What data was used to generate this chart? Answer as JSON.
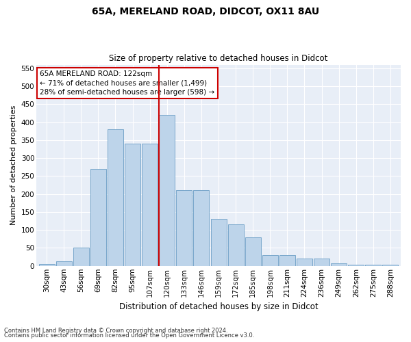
{
  "title1": "65A, MERELAND ROAD, DIDCOT, OX11 8AU",
  "title2": "Size of property relative to detached houses in Didcot",
  "xlabel": "Distribution of detached houses by size in Didcot",
  "ylabel": "Number of detached properties",
  "footnote1": "Contains HM Land Registry data © Crown copyright and database right 2024.",
  "footnote2": "Contains public sector information licensed under the Open Government Licence v3.0.",
  "categories": [
    "30sqm",
    "43sqm",
    "56sqm",
    "69sqm",
    "82sqm",
    "95sqm",
    "107sqm",
    "120sqm",
    "133sqm",
    "146sqm",
    "159sqm",
    "172sqm",
    "185sqm",
    "198sqm",
    "211sqm",
    "224sqm",
    "236sqm",
    "249sqm",
    "262sqm",
    "275sqm",
    "288sqm"
  ],
  "values": [
    5,
    12,
    50,
    270,
    380,
    340,
    340,
    420,
    210,
    210,
    130,
    115,
    80,
    30,
    30,
    20,
    20,
    8,
    3,
    3,
    3
  ],
  "bar_color": "#bdd4ea",
  "bar_edge_color": "#6a9ec5",
  "highlight_index": 7,
  "highlight_color": "#cc0000",
  "annotation_title": "65A MERELAND ROAD: 122sqm",
  "annotation_line1": "← 71% of detached houses are smaller (1,499)",
  "annotation_line2": "28% of semi-detached houses are larger (598) →",
  "annotation_box_color": "#ffffff",
  "annotation_border_color": "#cc0000",
  "ylim": [
    0,
    560
  ],
  "yticks": [
    0,
    50,
    100,
    150,
    200,
    250,
    300,
    350,
    400,
    450,
    500,
    550
  ],
  "background_color": "#e8eef7",
  "fig_width": 6.0,
  "fig_height": 5.0,
  "dpi": 100
}
